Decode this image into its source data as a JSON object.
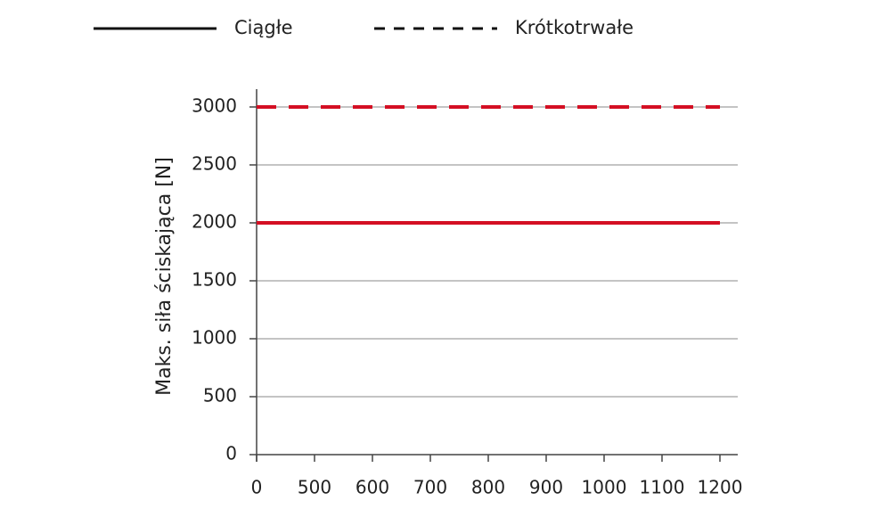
{
  "chart_data": {
    "type": "line",
    "y_label": "Maks. siła ściskająca [N]",
    "categories": [
      "0",
      "500",
      "600",
      "700",
      "800",
      "900",
      "1000",
      "1100",
      "1200"
    ],
    "series": [
      {
        "name": "Ciągłe",
        "color": "#d40f23",
        "dashed": false,
        "values": [
          2000,
          2000,
          2000,
          2000,
          2000,
          2000,
          2000,
          2000,
          2000
        ]
      },
      {
        "name": "Krótkotrwałe",
        "color": "#d40f23",
        "dashed": true,
        "values": [
          3000,
          3000,
          3000,
          3000,
          3000,
          3000,
          3000,
          3000,
          3000
        ]
      }
    ],
    "legend_color": "#111111",
    "legend_position": "top",
    "ylim": [
      0,
      3000
    ],
    "yticks": [
      0,
      500,
      1000,
      1500,
      2000,
      2500,
      3000
    ],
    "grid": true
  }
}
